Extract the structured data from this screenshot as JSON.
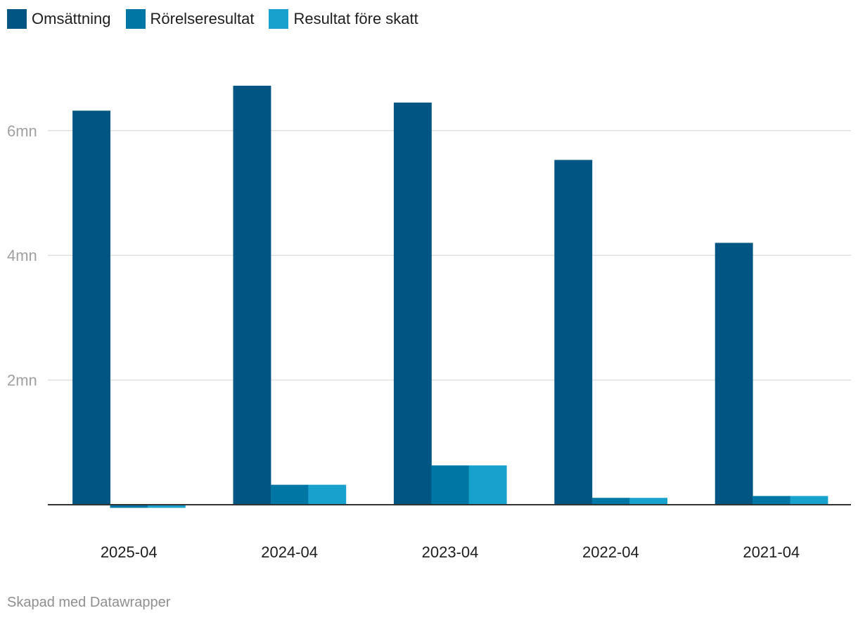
{
  "chart_data": {
    "type": "bar",
    "categories": [
      "2025-04",
      "2024-04",
      "2023-04",
      "2022-04",
      "2021-04"
    ],
    "series": [
      {
        "name": "Omsättning",
        "color": "#005582",
        "values": [
          6320000,
          6720000,
          6450000,
          5530000,
          4200000
        ]
      },
      {
        "name": "Rörelseresultat",
        "color": "#0076a5",
        "values": [
          -50000,
          320000,
          630000,
          110000,
          140000
        ]
      },
      {
        "name": "Resultat före skatt",
        "color": "#18a1cd",
        "values": [
          -50000,
          320000,
          630000,
          110000,
          140000
        ]
      }
    ],
    "ylim": [
      0,
      7000000
    ],
    "yticks": [
      {
        "value": 2000000,
        "label": "2mn"
      },
      {
        "value": 4000000,
        "label": "4mn"
      },
      {
        "value": 6000000,
        "label": "6mn"
      }
    ],
    "grid": true,
    "legend_position": "top-left"
  },
  "footer": {
    "credit": "Skapad med Datawrapper"
  }
}
